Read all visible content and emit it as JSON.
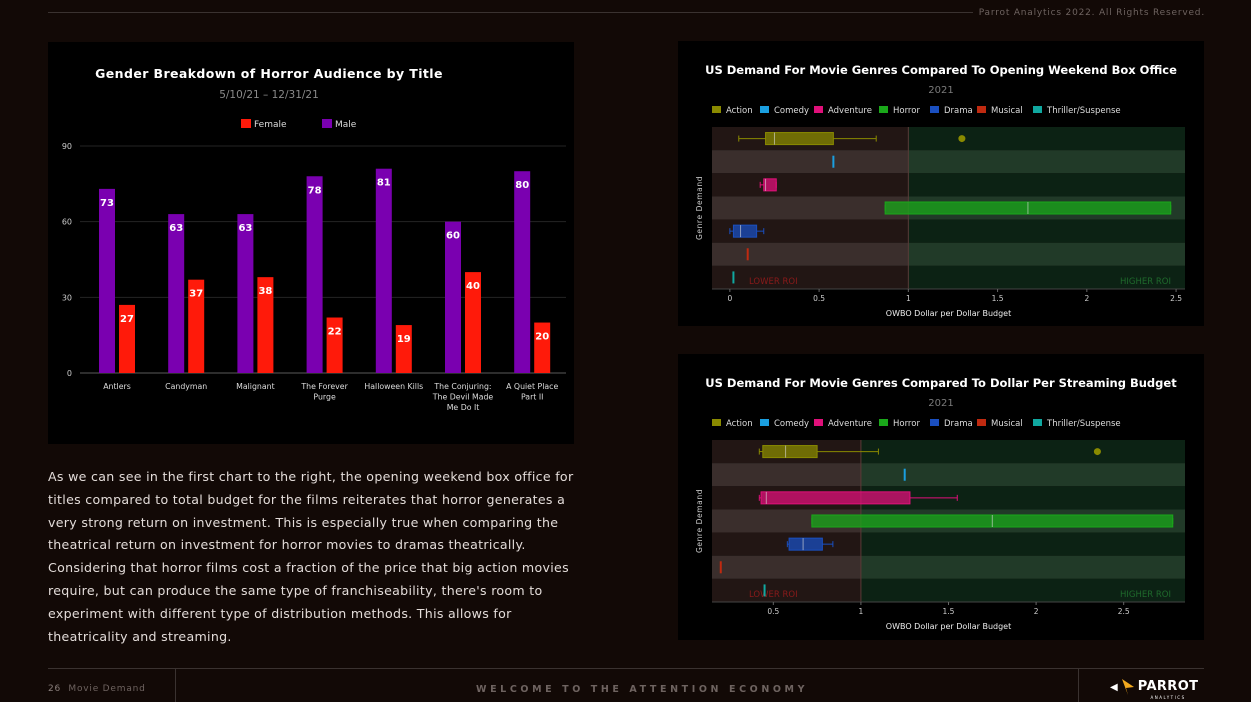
{
  "header": {
    "copyright": "Parrot Analytics 2022. All Rights Reserved."
  },
  "body_text": "As we can see in the first chart to the right, the opening weekend box office for titles compared to total budget for the films reiterates that horror generates a very strong return on investment. This is especially true when comparing the theatrical return on investment for horror movies to dramas theatrically. Considering that horror films cost a fraction of the price that big action movies require, but can produce the same type of franchiseability, there's room to experiment with different type of distribution methods. This allows for theatricality and streaming.",
  "footer": {
    "page_number": "26",
    "section": "Movie Demand",
    "tagline": "WELCOME TO THE ATTENTION ECONOMY",
    "logo_text": "PARROT",
    "logo_sub": "ANALYTICS"
  },
  "chart_data": [
    {
      "type": "bar",
      "title": "Gender Breakdown of Horror Audience by Title",
      "subtitle": "5/10/21 – 12/31/21",
      "categories": [
        "Antlers",
        "Candyman",
        "Malignant",
        "The Forever Purge",
        "Halloween Kills",
        "The Conjuring: The Devil Made Me Do It",
        "A Quiet Place Part II"
      ],
      "category_lines": [
        [
          "Antlers"
        ],
        [
          "Candyman"
        ],
        [
          "Malignant"
        ],
        [
          "The Forever",
          "Purge"
        ],
        [
          "Halloween Kills"
        ],
        [
          "The Conjuring:",
          "The Devil Made",
          "Me Do It"
        ],
        [
          "A Quiet Place",
          "Part II"
        ]
      ],
      "series": [
        {
          "name": "Female",
          "color": "#ff1a0a",
          "values": [
            27,
            37,
            38,
            22,
            19,
            40,
            20
          ]
        },
        {
          "name": "Male",
          "color": "#7a00b0",
          "values": [
            73,
            63,
            63,
            78,
            81,
            60,
            80
          ]
        }
      ],
      "yticks": [
        0,
        30,
        60,
        90
      ],
      "ylim": [
        0,
        90
      ],
      "legend": "top",
      "grid": true
    },
    {
      "type": "box",
      "title": "US Demand For Movie Genres Compared To Opening Weekend Box Office",
      "subtitle": "2021",
      "xlabel": "OWBO Dollar per Dollar Budget",
      "ylabel": "Genre Demand",
      "xlim": [
        -0.1,
        2.55
      ],
      "xticks": [
        0,
        0.5,
        1,
        1.5,
        2,
        2.5
      ],
      "threshold": 1,
      "left_region_label": "LOWER ROI",
      "right_region_label": "HIGHER ROI",
      "legend": "top",
      "series": [
        {
          "name": "Action",
          "color": "#8a8a00",
          "min": 0.05,
          "q1": 0.2,
          "median": 0.25,
          "q3": 0.58,
          "max": 0.82,
          "outliers": [
            1.3
          ]
        },
        {
          "name": "Comedy",
          "color": "#1a9fe0",
          "min": 0.58,
          "q1": 0.58,
          "median": 0.58,
          "q3": 0.58,
          "max": 0.58,
          "outliers": []
        },
        {
          "name": "Adventure",
          "color": "#e0107a",
          "min": 0.17,
          "q1": 0.19,
          "median": 0.2,
          "q3": 0.26,
          "max": 0.26,
          "outliers": []
        },
        {
          "name": "Horror",
          "color": "#1aa81a",
          "min": 0.87,
          "q1": 0.87,
          "median": 1.67,
          "q3": 2.47,
          "max": 2.47,
          "outliers": []
        },
        {
          "name": "Drama",
          "color": "#1a4fc0",
          "min": 0.0,
          "q1": 0.02,
          "median": 0.06,
          "q3": 0.15,
          "max": 0.19,
          "outliers": []
        },
        {
          "name": "Musical",
          "color": "#c02a10",
          "min": 0.1,
          "q1": 0.1,
          "median": 0.1,
          "q3": 0.1,
          "max": 0.1,
          "outliers": []
        },
        {
          "name": "Thriller/Suspense",
          "color": "#10a8a0",
          "min": 0.02,
          "q1": 0.02,
          "median": 0.02,
          "q3": 0.02,
          "max": 0.02,
          "outliers": []
        }
      ]
    },
    {
      "type": "box",
      "title": "US Demand For Movie Genres Compared To Dollar Per Streaming Budget",
      "subtitle": "2021",
      "xlabel": "OWBO Dollar per Dollar Budget",
      "ylabel": "Genre Demand",
      "xlim": [
        0.15,
        2.85
      ],
      "xticks": [
        0.5,
        1,
        1.5,
        2,
        2.5
      ],
      "threshold": 1,
      "left_region_label": "LOWER ROI",
      "right_region_label": "HIGHER ROI",
      "legend": "top",
      "series": [
        {
          "name": "Action",
          "color": "#8a8a00",
          "min": 0.42,
          "q1": 0.44,
          "median": 0.57,
          "q3": 0.75,
          "max": 1.1,
          "outliers": [
            2.35
          ]
        },
        {
          "name": "Comedy",
          "color": "#1a9fe0",
          "min": 1.25,
          "q1": 1.25,
          "median": 1.25,
          "q3": 1.25,
          "max": 1.25,
          "outliers": []
        },
        {
          "name": "Adventure",
          "color": "#e0107a",
          "min": 0.42,
          "q1": 0.43,
          "median": 0.46,
          "q3": 1.28,
          "max": 1.55,
          "outliers": []
        },
        {
          "name": "Horror",
          "color": "#1aa81a",
          "min": 0.72,
          "q1": 0.72,
          "median": 1.75,
          "q3": 2.78,
          "max": 2.78,
          "outliers": []
        },
        {
          "name": "Drama",
          "color": "#1a4fc0",
          "min": 0.58,
          "q1": 0.59,
          "median": 0.67,
          "q3": 0.78,
          "max": 0.84,
          "outliers": []
        },
        {
          "name": "Musical",
          "color": "#c02a10",
          "min": 0.2,
          "q1": 0.2,
          "median": 0.2,
          "q3": 0.2,
          "max": 0.2,
          "outliers": []
        },
        {
          "name": "Thriller/Suspense",
          "color": "#10a8a0",
          "min": 0.45,
          "q1": 0.45,
          "median": 0.45,
          "q3": 0.45,
          "max": 0.45,
          "outliers": []
        }
      ]
    }
  ]
}
